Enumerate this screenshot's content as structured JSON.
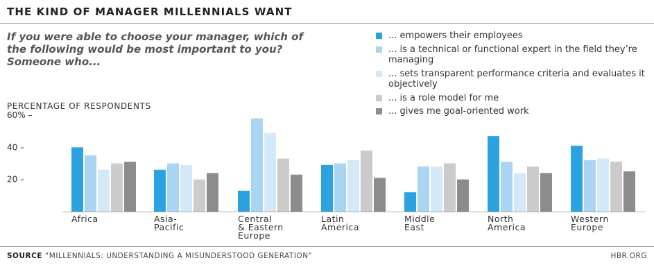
{
  "header": {
    "title": "THE KIND OF MANAGER MILLENNIALS WANT",
    "question": "If you were able to choose your manager, which of the following would be most important to you? Someone who..."
  },
  "footer": {
    "source_label": "SOURCE",
    "source_text": "“MILLENNIALS: UNDERSTANDING A MISUNDERSTOOD GENERATION”",
    "credit": "HBR.ORG"
  },
  "chart_data": {
    "type": "bar",
    "ylabel": "PERCENTAGE OF RESPONDENTS",
    "ylim": [
      0,
      60
    ],
    "yticks": [
      {
        "value": 60,
        "label": "60% –"
      },
      {
        "value": 40,
        "label": "40 –"
      },
      {
        "value": 20,
        "label": "20 –"
      }
    ],
    "categories": [
      [
        "Africa"
      ],
      [
        "Asia-",
        "Pacific"
      ],
      [
        "Central",
        "& Eastern",
        "Europe"
      ],
      [
        "Latin",
        "America"
      ],
      [
        "Middle",
        "East"
      ],
      [
        "North",
        "America"
      ],
      [
        "Western",
        "Europe"
      ]
    ],
    "legend_position": "top-right",
    "series": [
      {
        "name": "... empowers their employees",
        "color": "#2aa3e0",
        "values": [
          40,
          26,
          13,
          29,
          12,
          47,
          41
        ]
      },
      {
        "name": "... is a technical or functional expert in the field they’re managing",
        "color": "#a9d5f2",
        "values": [
          35,
          30,
          58,
          30,
          28,
          31,
          32
        ]
      },
      {
        "name": "... sets transparent performance criteria and evaluates it objectively",
        "color": "#d4e9f7",
        "values": [
          26,
          29,
          49,
          32,
          28,
          24,
          33
        ]
      },
      {
        "name": "... is a role model for me",
        "color": "#cbcbcb",
        "values": [
          30,
          20,
          33,
          38,
          30,
          28,
          31
        ]
      },
      {
        "name": "... gives me goal-oriented work",
        "color": "#8c8c8c",
        "values": [
          31,
          24,
          23,
          21,
          20,
          24,
          25
        ]
      }
    ]
  }
}
